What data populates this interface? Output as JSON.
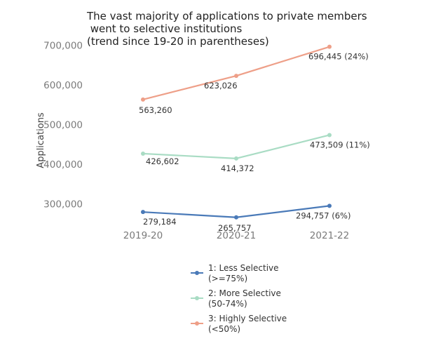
{
  "chart_data": {
    "type": "line",
    "title_lines": [
      "The vast majority of applications to private members",
      " went to selective institutions",
      "(trend since 19-20 in parentheses)"
    ],
    "ylabel": "Applications",
    "xlabel": "",
    "categories": [
      "2019-20",
      "2020-21",
      "2021-22"
    ],
    "ylim": [
      260000,
      710000
    ],
    "yticks": [
      300000,
      400000,
      500000,
      600000,
      700000
    ],
    "ytick_labels": [
      "300,000",
      "400,000",
      "500,000",
      "600,000",
      "700,000"
    ],
    "grid": false,
    "legend_position": "bottom",
    "series": [
      {
        "name_lines": [
          "1: Less Selective",
          "(>=75%)"
        ],
        "color": "#4a7ab8",
        "values": [
          279184,
          265757,
          294757
        ],
        "data_labels": [
          "279,184",
          "265,757",
          "294,757 (6%)"
        ]
      },
      {
        "name_lines": [
          "2: More Selective",
          "(50-74%)"
        ],
        "color": "#a9dcc4",
        "values": [
          426602,
          414372,
          473509
        ],
        "data_labels": [
          "426,602",
          "414,372",
          "473,509 (11%)"
        ]
      },
      {
        "name_lines": [
          "3: Highly Selective",
          "(<50%)"
        ],
        "color": "#ee9f88",
        "values": [
          563260,
          623026,
          696445
        ],
        "data_labels": [
          "563,260",
          "623,026",
          "696,445 (24%)"
        ]
      }
    ]
  }
}
